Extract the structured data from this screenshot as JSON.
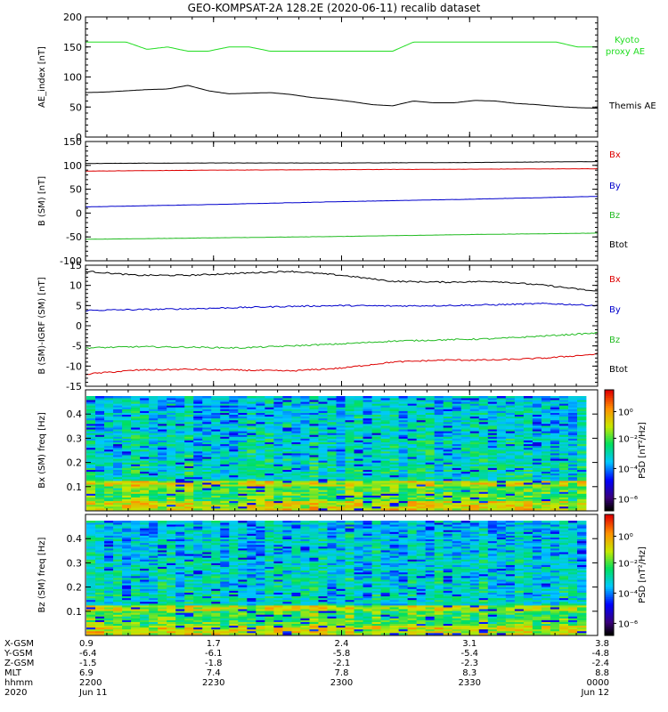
{
  "title": "GEO-KOMPSAT-2A 128.2E (2020-06-11) recalib dataset",
  "chart_data": [
    {
      "type": "line",
      "panel": "AE index",
      "ylabel": "AE_index [nT]",
      "ylim": [
        0,
        200
      ],
      "yticks": [
        "0",
        "50",
        "100",
        "150",
        "200"
      ],
      "x": [
        0,
        0.04,
        0.08,
        0.12,
        0.16,
        0.2,
        0.24,
        0.28,
        0.32,
        0.36,
        0.4,
        0.44,
        0.48,
        0.52,
        0.56,
        0.6,
        0.64,
        0.68,
        0.72,
        0.76,
        0.8,
        0.84,
        0.88,
        0.92,
        0.96,
        1
      ],
      "series": [
        {
          "name": "Kyoto proxy AE",
          "color": "#22dd22",
          "values": [
            158,
            158,
            158,
            146,
            150,
            143,
            143,
            150,
            150,
            143,
            143,
            143,
            143,
            143,
            143,
            143,
            158,
            158,
            158,
            158,
            158,
            158,
            158,
            158,
            150,
            150
          ]
        },
        {
          "name": "Themis AE",
          "color": "#000000",
          "values": [
            74,
            75,
            77,
            79,
            80,
            86,
            77,
            72,
            73,
            74,
            71,
            66,
            63,
            59,
            54,
            52,
            60,
            57,
            57,
            61,
            60,
            56,
            54,
            51,
            49,
            48
          ]
        }
      ]
    },
    {
      "type": "line",
      "panel": "B (SM)",
      "ylabel": "B (SM) [nT]",
      "ylim": [
        -100,
        150
      ],
      "yticks": [
        "-100",
        "-50",
        "0",
        "50",
        "100",
        "150"
      ],
      "x": [
        0,
        0.25,
        0.5,
        0.75,
        1
      ],
      "series": [
        {
          "name": "Btot",
          "color": "#000000",
          "values": [
            104,
            105,
            105,
            106,
            108
          ]
        },
        {
          "name": "Bx",
          "color": "#dd0000",
          "values": [
            88,
            90,
            91,
            92,
            93
          ]
        },
        {
          "name": "By",
          "color": "#0000cc",
          "values": [
            13,
            18,
            24,
            29,
            35
          ]
        },
        {
          "name": "Bz",
          "color": "#22bb22",
          "values": [
            -55,
            -52,
            -49,
            -45,
            -42
          ]
        }
      ]
    },
    {
      "type": "line",
      "panel": "B (SM)-IGRF (SM)",
      "ylabel": "B (SM)-IGRF (SM) [nT]",
      "ylim": [
        -15,
        15
      ],
      "yticks": [
        "-15",
        "-10",
        "-5",
        "0",
        "5",
        "10",
        "15"
      ],
      "x": [
        0,
        0.1,
        0.2,
        0.3,
        0.4,
        0.5,
        0.6,
        0.7,
        0.8,
        0.9,
        1
      ],
      "series": [
        {
          "name": "Btot",
          "color": "#000000",
          "values": [
            13.5,
            12.5,
            12.5,
            13,
            13.5,
            12.5,
            11,
            10.8,
            11,
            10,
            8.5
          ]
        },
        {
          "name": "By",
          "color": "#0000cc",
          "values": [
            3.8,
            4,
            4.2,
            4.5,
            4.8,
            5,
            4.9,
            5,
            5.2,
            5.5,
            5
          ]
        },
        {
          "name": "Bz",
          "color": "#22bb22",
          "values": [
            -5.5,
            -5.2,
            -5.3,
            -5.5,
            -5,
            -4.5,
            -3.8,
            -3.5,
            -3.2,
            -2.5,
            -1.8
          ]
        },
        {
          "name": "Bx",
          "color": "#dd0000",
          "values": [
            -12,
            -11,
            -10.8,
            -11,
            -11.2,
            -10.5,
            -9,
            -8.5,
            -8.5,
            -8,
            -7
          ]
        }
      ]
    },
    {
      "type": "heatmap",
      "panel": "Bx (SM)",
      "ylabel": "Bx (SM) freq [Hz]",
      "ylim": [
        0,
        0.5
      ],
      "yticks": [
        "0.1",
        "0.2",
        "0.3",
        "0.4"
      ],
      "colorbar_label": "PSD [nT²/Hz]",
      "colorbar_ticks": [
        "10⁰",
        "10⁻²",
        "10⁻⁴",
        "10⁻⁶"
      ]
    },
    {
      "type": "heatmap",
      "panel": "Bz (SM)",
      "ylabel": "Bz (SM) freq [Hz]",
      "ylim": [
        0,
        0.5
      ],
      "yticks": [
        "0.1",
        "0.2",
        "0.3",
        "0.4"
      ],
      "colorbar_label": "PSD [nT²/Hz]",
      "colorbar_ticks": [
        "10⁰",
        "10⁻²",
        "10⁻⁴",
        "10⁻⁶"
      ]
    }
  ],
  "x_axis": {
    "row_labels": [
      "X-GSM",
      "Y-GSM",
      "Z-GSM",
      "MLT",
      "hhmm",
      "2020"
    ],
    "columns": [
      [
        "0.9",
        "-6.4",
        "-1.5",
        "6.9",
        "2200",
        "Jun 11"
      ],
      [
        "1.7",
        "-6.1",
        "-1.8",
        "7.4",
        "2230",
        ""
      ],
      [
        "2.4",
        "-5.8",
        "-2.1",
        "7.8",
        "2300",
        ""
      ],
      [
        "3.1",
        "-5.4",
        "-2.3",
        "8.3",
        "2330",
        ""
      ],
      [
        "3.8",
        "-4.8",
        "-2.4",
        "8.8",
        "0000",
        "Jun 12"
      ]
    ]
  }
}
